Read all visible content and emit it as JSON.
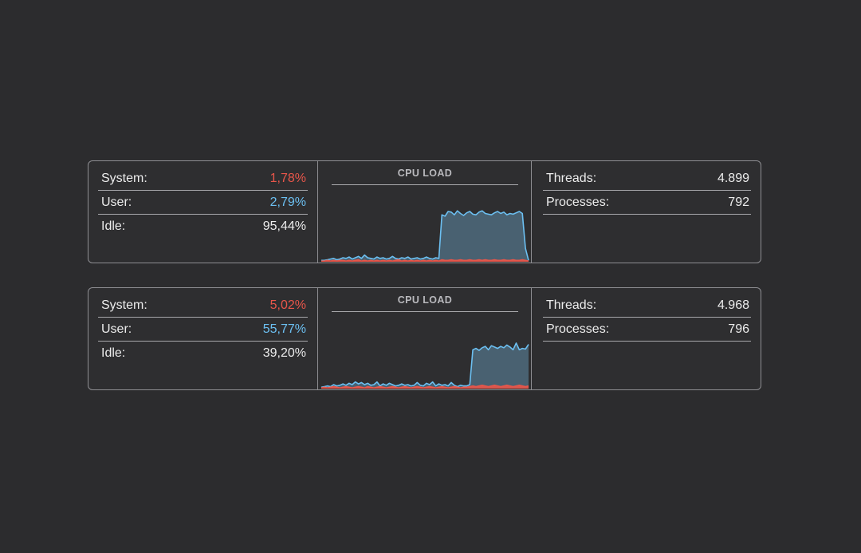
{
  "panels": [
    {
      "system_label": "System:",
      "system_value": "1,78%",
      "user_label": "User:",
      "user_value": "2,79%",
      "idle_label": "Idle:",
      "idle_value": "95,44%",
      "chart_title": "CPU LOAD",
      "threads_label": "Threads:",
      "threads_value": "4.899",
      "processes_label": "Processes:",
      "processes_value": "792"
    },
    {
      "system_label": "System:",
      "system_value": "5,02%",
      "user_label": "User:",
      "user_value": "55,77%",
      "idle_label": "Idle:",
      "idle_value": "39,20%",
      "chart_title": "CPU LOAD",
      "threads_label": "Threads:",
      "threads_value": "4.968",
      "processes_label": "Processes:",
      "processes_value": "796"
    }
  ],
  "colors": {
    "system": "#e9564a",
    "user": "#6cc0f2",
    "user_fill": "#4d6a7d",
    "border": "#8e8e92"
  },
  "chart_data": [
    {
      "type": "area",
      "title": "CPU LOAD",
      "ylim": [
        0,
        100
      ],
      "series": [
        {
          "values": [
            2,
            2,
            3,
            4,
            5,
            3,
            4,
            6,
            5,
            7,
            4,
            6,
            8,
            5,
            10,
            6,
            5,
            4,
            7,
            5,
            6,
            4,
            5,
            8,
            5,
            4,
            6,
            5,
            7,
            4,
            5,
            6,
            4,
            5,
            7,
            5,
            4,
            6,
            5,
            70,
            68,
            75,
            74,
            70,
            76,
            72,
            69,
            73,
            75,
            71,
            70,
            74,
            76,
            72,
            71,
            70,
            73,
            75,
            72,
            74,
            70,
            72,
            71,
            73,
            75,
            72,
            20,
            2
          ]
        },
        {
          "values": [
            1,
            1,
            2,
            1,
            2,
            1,
            2,
            2,
            1,
            2,
            1,
            2,
            3,
            1,
            2,
            1,
            2,
            1,
            2,
            1,
            2,
            1,
            2,
            1,
            2,
            3,
            1,
            2,
            1,
            2,
            1,
            2,
            1,
            2,
            1,
            2,
            1,
            2,
            1,
            3,
            2,
            2,
            3,
            2,
            2,
            3,
            2,
            2,
            3,
            2,
            2,
            3,
            2,
            3,
            2,
            2,
            3,
            2,
            2,
            3,
            2,
            2,
            3,
            2,
            2,
            3,
            2,
            1
          ]
        }
      ]
    },
    {
      "type": "area",
      "title": "CPU LOAD",
      "ylim": [
        0,
        100
      ],
      "series": [
        {
          "values": [
            2,
            3,
            4,
            3,
            6,
            4,
            5,
            7,
            5,
            8,
            6,
            10,
            7,
            9,
            6,
            8,
            5,
            6,
            10,
            4,
            7,
            5,
            8,
            6,
            4,
            5,
            7,
            5,
            6,
            4,
            5,
            9,
            5,
            4,
            8,
            6,
            10,
            4,
            7,
            5,
            6,
            4,
            9,
            5,
            3,
            5,
            4,
            4,
            6,
            58,
            60,
            57,
            61,
            63,
            58,
            64,
            62,
            60,
            63,
            61,
            65,
            62,
            58,
            68,
            58,
            60,
            59,
            66
          ]
        },
        {
          "values": [
            1,
            2,
            1,
            2,
            3,
            2,
            1,
            2,
            3,
            2,
            1,
            2,
            3,
            2,
            1,
            3,
            2,
            1,
            2,
            3,
            2,
            1,
            2,
            3,
            2,
            1,
            2,
            3,
            2,
            1,
            2,
            3,
            2,
            1,
            2,
            3,
            2,
            1,
            2,
            3,
            2,
            1,
            2,
            3,
            2,
            1,
            2,
            2,
            3,
            4,
            3,
            4,
            5,
            4,
            3,
            4,
            5,
            4,
            3,
            4,
            5,
            4,
            3,
            4,
            5,
            4,
            3,
            4
          ]
        }
      ]
    }
  ]
}
